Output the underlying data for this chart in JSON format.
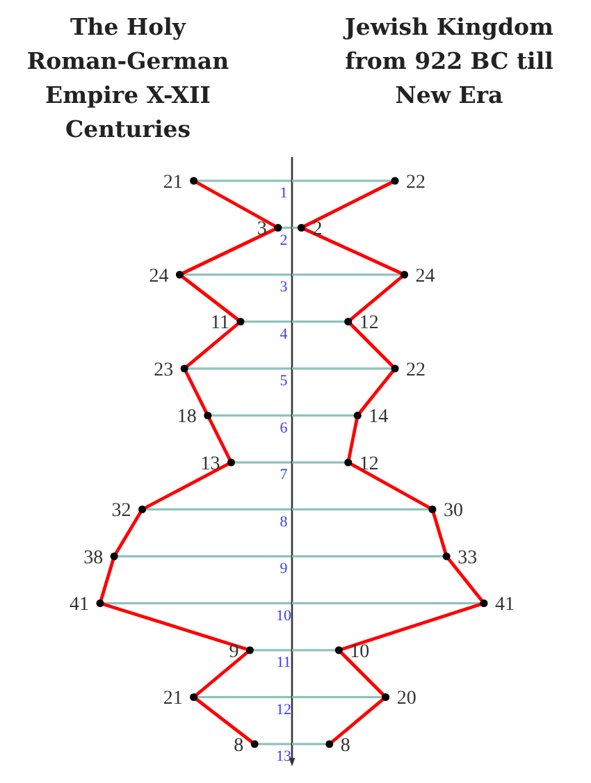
{
  "chart_data": [
    {
      "type": "bar",
      "orientation": "horizontal",
      "title": "The Holy\nRoman-German\nEmpire X-XII\nCenturies",
      "categories": [
        "1",
        "2",
        "3",
        "4",
        "5",
        "6",
        "7",
        "8",
        "9",
        "10",
        "11",
        "12",
        "13"
      ],
      "tick_labels": "y",
      "series": [
        {
          "color": "#8fc1bd",
          "values": [
            21,
            3,
            24,
            11,
            23,
            18,
            13,
            32,
            38,
            41,
            9,
            21,
            8
          ]
        },
        {
          "type": "line",
          "color": "#ff0000",
          "values": [
            21,
            3,
            24,
            11,
            23,
            18,
            13,
            32,
            38,
            41,
            9,
            21,
            8
          ]
        },
        {
          "type": "scatter",
          "color": "#000000",
          "values": [
            21,
            3,
            24,
            11,
            23,
            18,
            13,
            32,
            38,
            41,
            9,
            21,
            8
          ],
          "value_labels": [
            "21",
            "3",
            "24",
            "11",
            "23",
            "18",
            "13",
            "32",
            "38",
            "41",
            "9",
            "21",
            "8"
          ]
        }
      ]
    },
    {
      "type": "bar",
      "orientation": "horizontal",
      "title": "Jewish Kingdom\nfrom 922 BC till\nNew Era",
      "categories": [
        null,
        null,
        null,
        null,
        null,
        null,
        null,
        null,
        null,
        null,
        null,
        null,
        null
      ],
      "series": [
        {
          "color": "#8fc1bd",
          "values": [
            22,
            2,
            24,
            12,
            22,
            14,
            12,
            30,
            33,
            41,
            10,
            20,
            8
          ]
        },
        {
          "type": "line",
          "color": "#ff0000",
          "values": [
            22,
            2,
            24,
            12,
            22,
            14,
            12,
            30,
            33,
            41,
            10,
            20,
            8
          ]
        },
        {
          "type": "scatter",
          "color": "#000000",
          "values": [
            22,
            2,
            24,
            12,
            22,
            14,
            12,
            30,
            33,
            41,
            10,
            20,
            8
          ],
          "value_labels": [
            "22",
            "2",
            "24",
            "12",
            "22",
            "14",
            "12",
            "30",
            "33",
            "41",
            "10",
            "20",
            "8"
          ]
        }
      ]
    }
  ]
}
